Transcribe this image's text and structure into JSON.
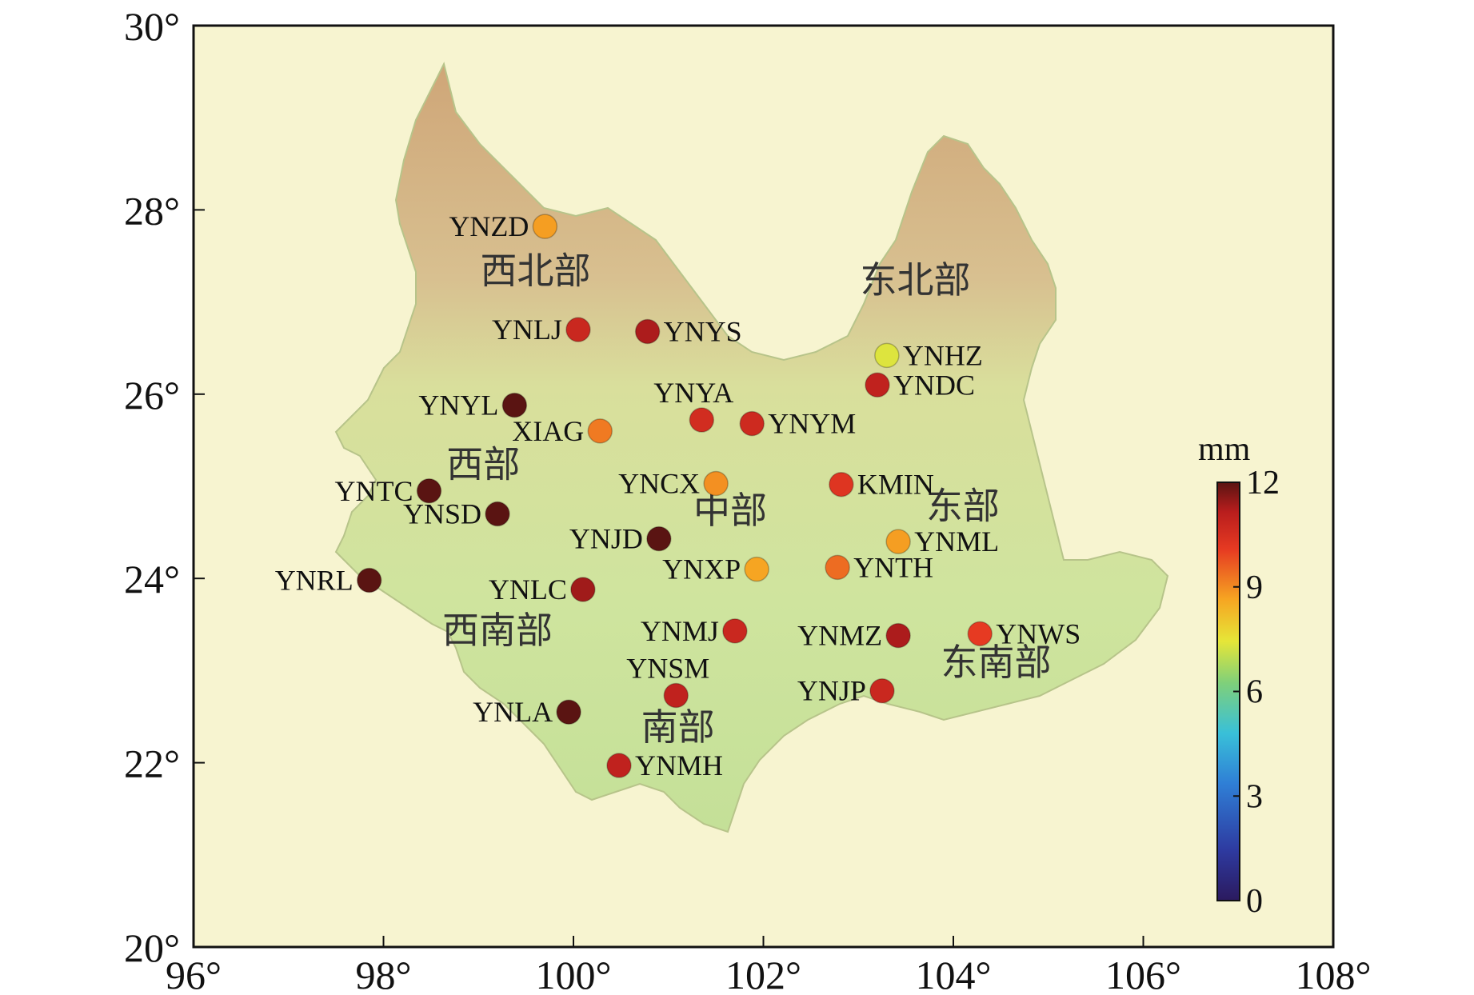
{
  "map": {
    "x_ticks": [
      "96°",
      "98°",
      "100°",
      "102°",
      "104°",
      "106°",
      "108°"
    ],
    "y_ticks": [
      "20°",
      "22°",
      "24°",
      "26°",
      "28°",
      "30°"
    ],
    "colorbar": {
      "unit": "mm",
      "ticks": [
        "0",
        "3",
        "6",
        "9",
        "12"
      ],
      "range": [
        0,
        12
      ]
    },
    "regions": [
      {
        "name": "西北部",
        "lon": 99.6,
        "lat": 27.2
      },
      {
        "name": "东北部",
        "lon": 103.6,
        "lat": 27.1
      },
      {
        "name": "西部",
        "lon": 99.05,
        "lat": 25.1
      },
      {
        "name": "中部",
        "lon": 101.65,
        "lat": 24.6
      },
      {
        "name": "东部",
        "lon": 104.1,
        "lat": 24.65
      },
      {
        "name": "西南部",
        "lon": 99.2,
        "lat": 23.3
      },
      {
        "name": "东南部",
        "lon": 104.45,
        "lat": 22.95
      },
      {
        "name": "南部",
        "lon": 101.1,
        "lat": 22.25
      }
    ],
    "stations": [
      {
        "name": "YNZD",
        "lon": 99.7,
        "lat": 27.82,
        "value": 8.7,
        "label_side": "left"
      },
      {
        "name": "YNLJ",
        "lon": 100.05,
        "lat": 26.7,
        "value": 10.8,
        "label_side": "left"
      },
      {
        "name": "YNYS",
        "lon": 100.78,
        "lat": 26.68,
        "value": 11.3,
        "label_side": "right"
      },
      {
        "name": "YNHZ",
        "lon": 103.3,
        "lat": 26.42,
        "value": 7.3,
        "label_side": "right"
      },
      {
        "name": "YNDC",
        "lon": 103.2,
        "lat": 26.1,
        "value": 11.0,
        "label_side": "right"
      },
      {
        "name": "YNYL",
        "lon": 99.38,
        "lat": 25.88,
        "value": 12.0,
        "label_side": "left"
      },
      {
        "name": "YNYA",
        "lon": 101.35,
        "lat": 25.72,
        "value": 10.6,
        "label_side": "top"
      },
      {
        "name": "YNYM",
        "lon": 101.88,
        "lat": 25.68,
        "value": 10.7,
        "label_side": "right"
      },
      {
        "name": "XIAG",
        "lon": 100.28,
        "lat": 25.6,
        "value": 9.2,
        "label_side": "left"
      },
      {
        "name": "YNCX",
        "lon": 101.5,
        "lat": 25.03,
        "value": 8.9,
        "label_side": "left"
      },
      {
        "name": "KMIN",
        "lon": 102.82,
        "lat": 25.02,
        "value": 10.3,
        "label_side": "right"
      },
      {
        "name": "YNTC",
        "lon": 98.48,
        "lat": 24.95,
        "value": 12.0,
        "label_side": "left"
      },
      {
        "name": "YNSD",
        "lon": 99.2,
        "lat": 24.7,
        "value": 12.0,
        "label_side": "left"
      },
      {
        "name": "YNJD",
        "lon": 100.9,
        "lat": 24.43,
        "value": 12.0,
        "label_side": "left"
      },
      {
        "name": "YNML",
        "lon": 103.42,
        "lat": 24.4,
        "value": 8.7,
        "label_side": "right"
      },
      {
        "name": "YNXP",
        "lon": 101.93,
        "lat": 24.1,
        "value": 8.6,
        "label_side": "left"
      },
      {
        "name": "YNTH",
        "lon": 102.78,
        "lat": 24.12,
        "value": 9.4,
        "label_side": "right"
      },
      {
        "name": "YNRL",
        "lon": 97.85,
        "lat": 23.98,
        "value": 12.0,
        "label_side": "left"
      },
      {
        "name": "YNLC",
        "lon": 100.1,
        "lat": 23.88,
        "value": 11.4,
        "label_side": "left"
      },
      {
        "name": "YNMJ",
        "lon": 101.7,
        "lat": 23.43,
        "value": 10.8,
        "label_side": "left"
      },
      {
        "name": "YNMZ",
        "lon": 103.42,
        "lat": 23.38,
        "value": 11.3,
        "label_side": "left"
      },
      {
        "name": "YNWS",
        "lon": 104.28,
        "lat": 23.4,
        "value": 10.1,
        "label_side": "right"
      },
      {
        "name": "YNSM",
        "lon": 101.08,
        "lat": 22.73,
        "value": 11.0,
        "label_side": "top"
      },
      {
        "name": "YNLA",
        "lon": 99.95,
        "lat": 22.55,
        "value": 12.0,
        "label_side": "left"
      },
      {
        "name": "YNJP",
        "lon": 103.25,
        "lat": 22.78,
        "value": 10.8,
        "label_side": "left"
      },
      {
        "name": "YNMH",
        "lon": 100.48,
        "lat": 21.97,
        "value": 11.0,
        "label_side": "right"
      }
    ]
  }
}
